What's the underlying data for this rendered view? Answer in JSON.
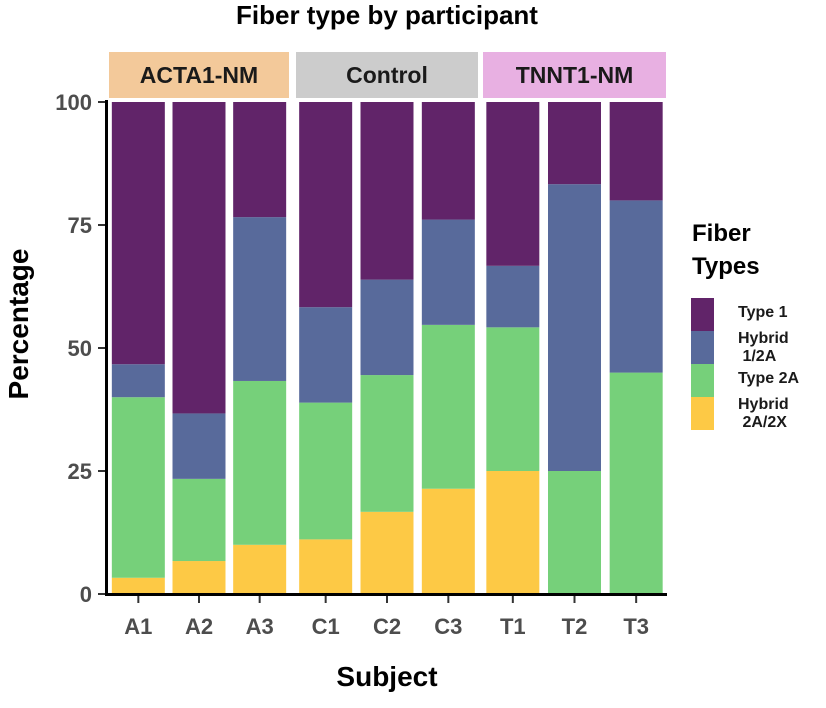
{
  "chart_data": {
    "type": "bar",
    "stacked": true,
    "title": "Fiber type by participant",
    "xlabel": "Subject",
    "ylabel": "Percentage",
    "ylim": [
      0,
      100
    ],
    "yticks": [
      0,
      25,
      50,
      75,
      100
    ],
    "grid": false,
    "legend_placement": "right",
    "legend_title": [
      "Fiber",
      "Types"
    ],
    "facets": [
      {
        "label": "ACTA1-NM",
        "color": "#F3C99A",
        "categories": [
          "A1",
          "A2",
          "A3"
        ]
      },
      {
        "label": "Control",
        "color": "#CCCCCC",
        "categories": [
          "C1",
          "C2",
          "C3"
        ]
      },
      {
        "label": "TNNT1-NM",
        "color": "#E8B0E2",
        "categories": [
          "T1",
          "T2",
          "T3"
        ]
      }
    ],
    "categories": [
      "A1",
      "A2",
      "A3",
      "C1",
      "C2",
      "C3",
      "T1",
      "T2",
      "T3"
    ],
    "series": [
      {
        "name": "Hybrid 2A/2X",
        "legend_lines": [
          "Hybrid",
          " 2A/2X"
        ],
        "color": "#FDC945",
        "values": [
          3.3,
          6.7,
          10,
          11.1,
          16.7,
          21.4,
          25,
          0,
          0
        ]
      },
      {
        "name": "Type 2A",
        "legend_lines": [
          "Type 2A"
        ],
        "color": "#76D07A",
        "values": [
          36.7,
          16.7,
          33.3,
          27.8,
          27.8,
          33.3,
          29.2,
          25,
          45
        ]
      },
      {
        "name": "Hybrid 1/2A",
        "legend_lines": [
          "Hybrid",
          " 1/2A"
        ],
        "color": "#586A9B",
        "values": [
          6.7,
          13.3,
          33.3,
          19.4,
          19.4,
          21.4,
          12.5,
          58.3,
          35
        ]
      },
      {
        "name": "Type 1",
        "legend_lines": [
          "Type 1"
        ],
        "color": "#612469",
        "values": [
          53.3,
          63.3,
          23.4,
          41.7,
          36.1,
          23.9,
          33.3,
          16.7,
          20
        ]
      }
    ],
    "legend_order": [
      "Type 1",
      "Hybrid 1/2A",
      "Type 2A",
      "Hybrid 2A/2X"
    ]
  }
}
